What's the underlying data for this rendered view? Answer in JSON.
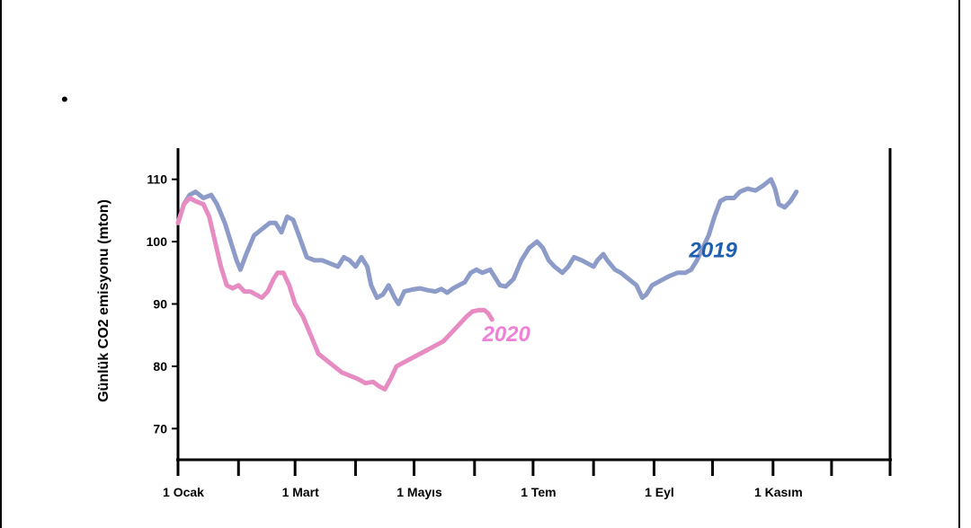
{
  "page": {
    "bullet": "•"
  },
  "chart_data": {
    "type": "line",
    "ylabel": "Günlük CO2 emisyonu (mton)",
    "xlabel": "",
    "ylim": [
      65,
      115
    ],
    "yticks": [
      70,
      80,
      90,
      100,
      110
    ],
    "xlim": [
      0,
      365
    ],
    "x_ticks": [
      0,
      31,
      60,
      91,
      121,
      152,
      182,
      213,
      244,
      274,
      305,
      335,
      365
    ],
    "x_tick_labels": [
      {
        "day": 0,
        "label": "1 Ocak"
      },
      {
        "day": 60,
        "label": "1 Mart"
      },
      {
        "day": 121,
        "label": "1 Mayıs"
      },
      {
        "day": 182,
        "label": "1 Tem"
      },
      {
        "day": 244,
        "label": "1 Eyl"
      },
      {
        "day": 305,
        "label": "1 Kasım"
      }
    ],
    "grid": false,
    "series": [
      {
        "name": "2019",
        "color": "#8c9bc8",
        "label_color": "#1f5fb0",
        "label_at": {
          "day": 262,
          "value": 97.5
        },
        "points": [
          [
            0,
            103
          ],
          [
            3,
            106
          ],
          [
            6,
            107.5
          ],
          [
            9,
            108
          ],
          [
            13,
            107
          ],
          [
            17,
            107.5
          ],
          [
            20,
            106
          ],
          [
            24,
            103
          ],
          [
            27,
            100
          ],
          [
            30,
            97
          ],
          [
            32,
            95.5
          ],
          [
            35,
            98
          ],
          [
            39,
            101
          ],
          [
            43,
            102
          ],
          [
            47,
            103
          ],
          [
            50,
            103
          ],
          [
            53,
            101.5
          ],
          [
            56,
            104
          ],
          [
            59,
            103.5
          ],
          [
            62,
            101
          ],
          [
            66,
            97.5
          ],
          [
            70,
            97
          ],
          [
            74,
            97
          ],
          [
            78,
            96.5
          ],
          [
            82,
            96
          ],
          [
            85,
            97.5
          ],
          [
            88,
            97
          ],
          [
            91,
            96
          ],
          [
            94,
            97.5
          ],
          [
            97,
            96
          ],
          [
            99,
            93
          ],
          [
            102,
            91
          ],
          [
            105,
            91.5
          ],
          [
            108,
            93
          ],
          [
            111,
            91
          ],
          [
            113,
            90
          ],
          [
            116,
            92
          ],
          [
            120,
            92.3
          ],
          [
            124,
            92.5
          ],
          [
            128,
            92.2
          ],
          [
            132,
            92
          ],
          [
            135,
            92.4
          ],
          [
            138,
            91.8
          ],
          [
            141,
            92.5
          ],
          [
            144,
            93
          ],
          [
            147,
            93.5
          ],
          [
            150,
            95
          ],
          [
            153,
            95.5
          ],
          [
            156,
            95
          ],
          [
            160,
            95.5
          ],
          [
            163,
            94
          ],
          [
            165,
            93
          ],
          [
            168,
            92.8
          ],
          [
            172,
            94
          ],
          [
            176,
            97
          ],
          [
            180,
            99
          ],
          [
            184,
            100
          ],
          [
            187,
            99
          ],
          [
            190,
            97
          ],
          [
            193,
            96
          ],
          [
            197,
            95
          ],
          [
            200,
            96
          ],
          [
            203,
            97.5
          ],
          [
            207,
            97
          ],
          [
            210,
            96.5
          ],
          [
            213,
            96
          ],
          [
            215,
            97
          ],
          [
            218,
            98
          ],
          [
            220,
            97
          ],
          [
            224,
            95.5
          ],
          [
            227,
            95
          ],
          [
            231,
            94
          ],
          [
            235,
            93
          ],
          [
            238,
            91
          ],
          [
            240,
            91.5
          ],
          [
            243,
            93
          ],
          [
            246,
            93.5
          ],
          [
            249,
            94
          ],
          [
            252,
            94.5
          ],
          [
            256,
            95
          ],
          [
            260,
            95
          ],
          [
            263,
            95.5
          ],
          [
            266,
            97
          ],
          [
            269,
            99
          ],
          [
            272,
            101
          ],
          [
            275,
            104
          ],
          [
            278,
            106.5
          ],
          [
            281,
            107
          ],
          [
            285,
            107
          ],
          [
            288,
            108
          ],
          [
            292,
            108.5
          ],
          [
            296,
            108.2
          ],
          [
            300,
            109
          ],
          [
            304,
            110
          ],
          [
            306,
            108.5
          ],
          [
            308,
            106
          ],
          [
            311,
            105.5
          ],
          [
            314,
            106.5
          ],
          [
            317,
            108
          ]
        ]
      },
      {
        "name": "2020",
        "color": "#e68cc3",
        "label_color": "#ee80d8",
        "label_at": {
          "day": 156,
          "value": 84
        },
        "points": [
          [
            0,
            103
          ],
          [
            3,
            106
          ],
          [
            6,
            107
          ],
          [
            9,
            106.5
          ],
          [
            13,
            106
          ],
          [
            16,
            104
          ],
          [
            19,
            100
          ],
          [
            22,
            96
          ],
          [
            25,
            93
          ],
          [
            28,
            92.5
          ],
          [
            31,
            93
          ],
          [
            34,
            92
          ],
          [
            37,
            92
          ],
          [
            40,
            91.5
          ],
          [
            43,
            91
          ],
          [
            46,
            92
          ],
          [
            49,
            94
          ],
          [
            51,
            95
          ],
          [
            54,
            95
          ],
          [
            57,
            93
          ],
          [
            60,
            90
          ],
          [
            64,
            88
          ],
          [
            68,
            85
          ],
          [
            72,
            82
          ],
          [
            76,
            81
          ],
          [
            80,
            80
          ],
          [
            84,
            79
          ],
          [
            88,
            78.5
          ],
          [
            92,
            78
          ],
          [
            96,
            77.3
          ],
          [
            100,
            77.5
          ],
          [
            103,
            76.8
          ],
          [
            106,
            76.3
          ],
          [
            109,
            78
          ],
          [
            112,
            80
          ],
          [
            115,
            80.5
          ],
          [
            118,
            81
          ],
          [
            121,
            81.5
          ],
          [
            124,
            82
          ],
          [
            127,
            82.5
          ],
          [
            130,
            83
          ],
          [
            133,
            83.5
          ],
          [
            136,
            84
          ],
          [
            139,
            85
          ],
          [
            142,
            86
          ],
          [
            145,
            87
          ],
          [
            148,
            88
          ],
          [
            151,
            88.8
          ],
          [
            154,
            89
          ],
          [
            157,
            89
          ],
          [
            159,
            88.5
          ],
          [
            161,
            87.5
          ]
        ]
      }
    ]
  }
}
